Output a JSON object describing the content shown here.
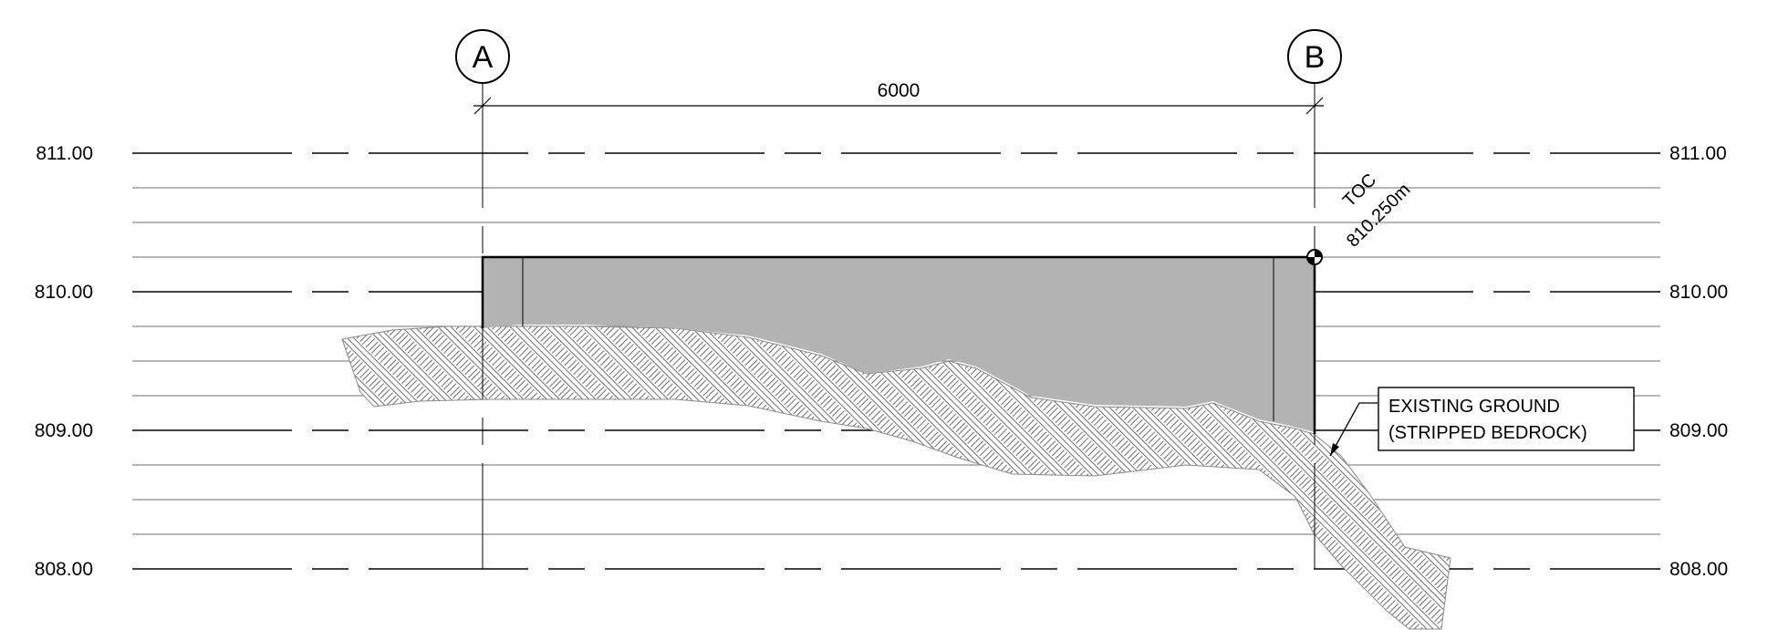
{
  "levels": {
    "l811": "811.00",
    "l810": "810.00",
    "l809": "809.00",
    "l808": "808.00"
  },
  "grids": {
    "a": "A",
    "b": "B"
  },
  "dimension": "6000",
  "top_of_concrete": {
    "label": "TOC",
    "elevation": "810.250m"
  },
  "note": {
    "line1": "EXISTING GROUND",
    "line2": "(STRIPPED BEDROCK)"
  },
  "colors": {
    "wall_fill": "#b3b3b3",
    "line": "#000000",
    "minor_line": "#8c8c8c"
  }
}
